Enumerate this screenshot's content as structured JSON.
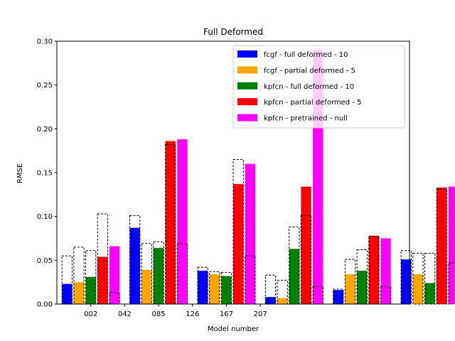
{
  "chart_data": {
    "type": "bar",
    "title": "Full Deformed",
    "xlabel": "Model number",
    "ylabel": "RMSE",
    "ylim": [
      0,
      0.3
    ],
    "yticks": [
      "0.00",
      "0.05",
      "0.10",
      "0.15",
      "0.20",
      "0.25",
      "0.30"
    ],
    "ytick_values": [
      0,
      0.05,
      0.1,
      0.15,
      0.2,
      0.25,
      0.3
    ],
    "xtick_labels": [
      {
        "label": "002",
        "position": 0.7
      },
      {
        "label": "042",
        "position": 1.7
      },
      {
        "label": "085",
        "position": 2.7
      },
      {
        "label": "126",
        "position": 3.7
      },
      {
        "label": "167",
        "position": 4.7
      },
      {
        "label": "207",
        "position": 5.7
      }
    ],
    "xlim": [
      -0.3,
      10.1
    ],
    "legend_location": "upper right",
    "groups": [
      0,
      2,
      4,
      6,
      8,
      10
    ],
    "series": [
      {
        "name": "fcgf - full deformed - 10",
        "color": "#0000ff",
        "values": [
          0.023,
          0.087,
          0.038,
          0.008,
          0.016,
          0.051
        ],
        "ref": [
          0.055,
          0.101,
          0.042,
          0.033,
          0.017,
          0.061
        ]
      },
      {
        "name": "fcgf - partial deformed - 5",
        "color": "#ffa500",
        "values": [
          0.025,
          0.039,
          0.034,
          0.007,
          0.034,
          0.034
        ],
        "ref": [
          0.065,
          0.069,
          0.037,
          0.027,
          0.051,
          0.058
        ]
      },
      {
        "name": "kpfcn - full deformed - 10",
        "color": "#008000",
        "values": [
          0.031,
          0.064,
          0.032,
          0.063,
          0.038,
          0.024
        ],
        "ref": [
          0.061,
          0.071,
          0.036,
          0.088,
          0.062,
          0.058
        ]
      },
      {
        "name": "kpfcn - partial deformed - 5",
        "color": "#ff0000",
        "values": [
          0.054,
          0.186,
          0.137,
          0.134,
          0.078,
          0.133
        ],
        "ref": [
          0.103,
          0.182,
          0.165,
          0.101,
          0.077,
          0.131
        ]
      },
      {
        "name": "kpfcn - pretrained - null",
        "color": "#ff00ff",
        "values": [
          0.066,
          0.188,
          0.16,
          0.29,
          0.075,
          0.134
        ],
        "ref": [
          0.013,
          0.069,
          0.055,
          0.02,
          0.02,
          0.047
        ]
      }
    ]
  }
}
